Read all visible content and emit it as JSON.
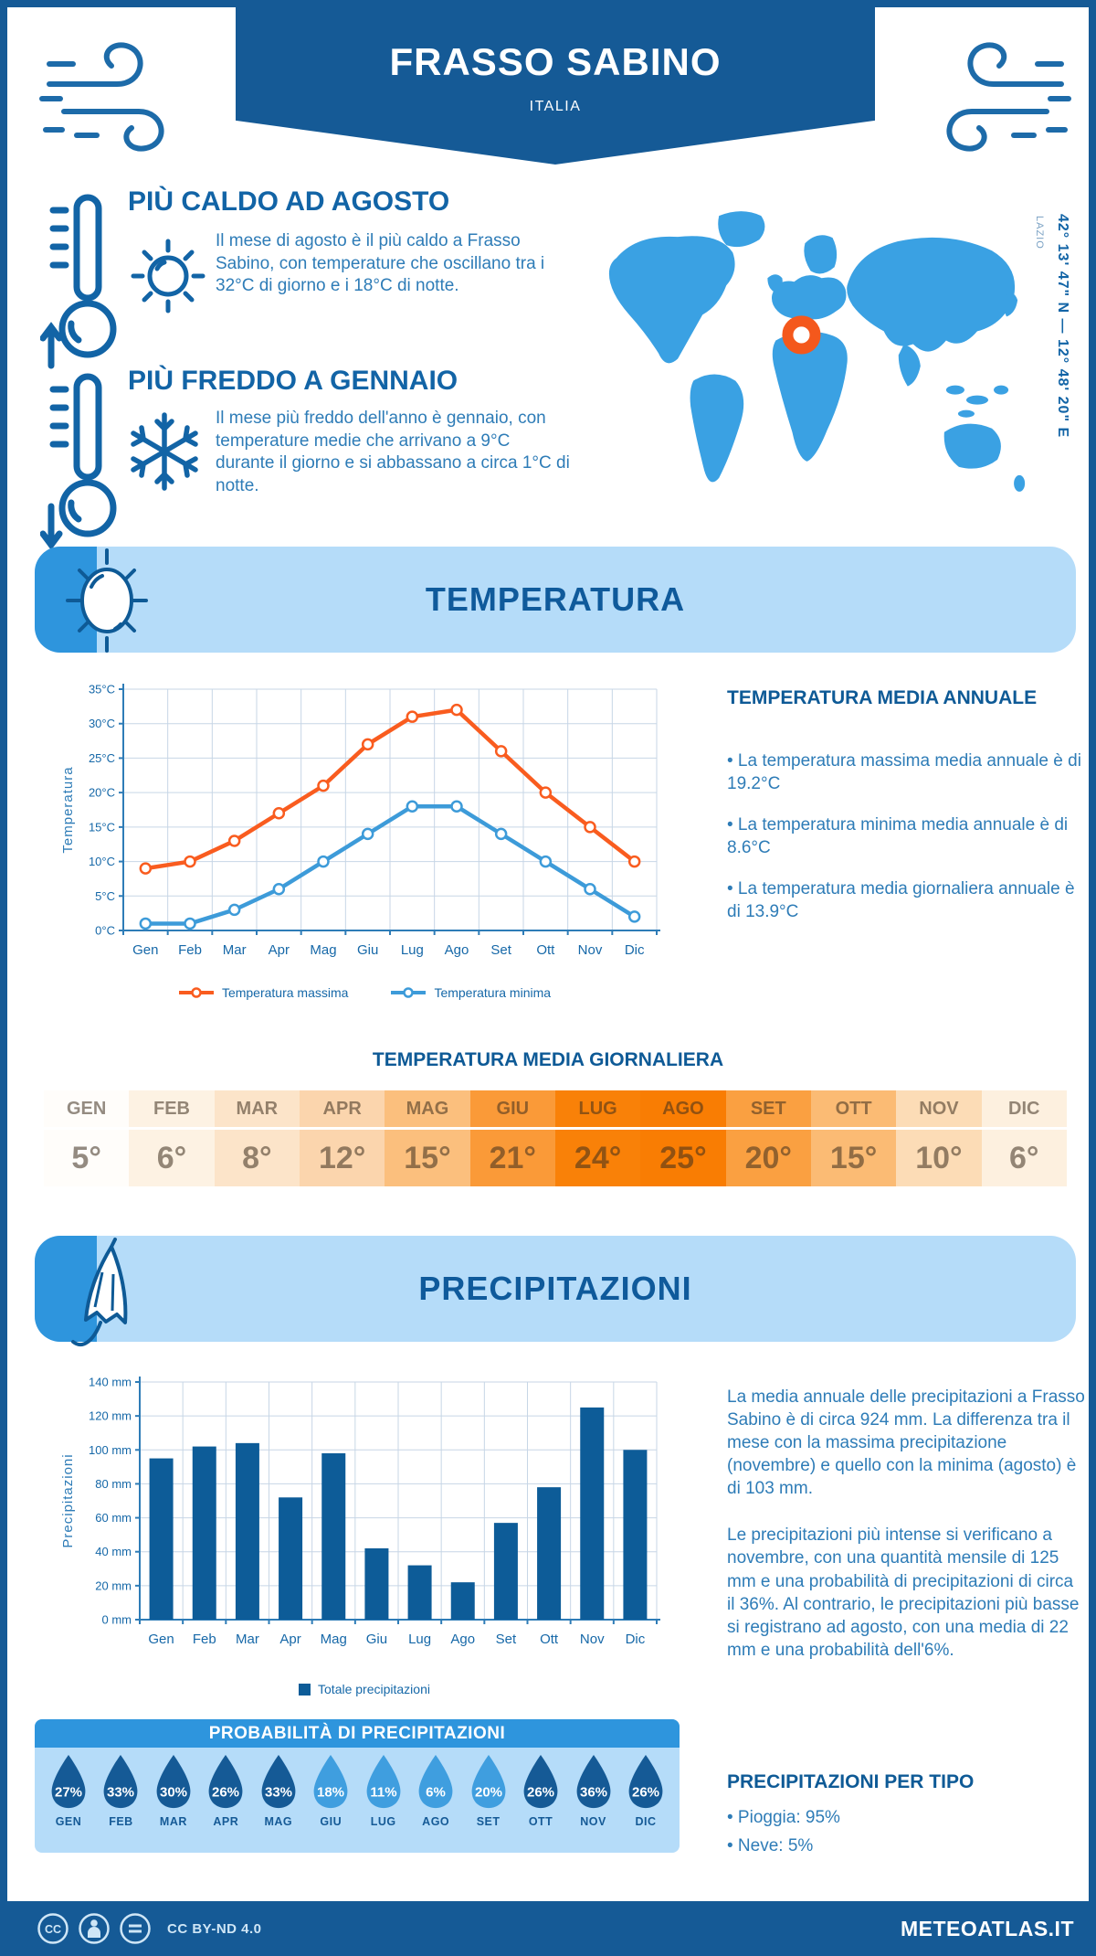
{
  "header": {
    "title": "FRASSO SABINO",
    "subtitle": "ITALIA"
  },
  "highlights": {
    "hot": {
      "title": "PIÙ CALDO AD AGOSTO",
      "text": "Il mese di agosto è il più caldo a Frasso Sabino, con temperature che oscillano tra i 32°C di giorno e i 18°C di notte."
    },
    "cold": {
      "title": "PIÙ FREDDO A GENNAIO",
      "text": "Il mese più freddo dell'anno è gennaio, con temperature medie che arrivano a 9°C durante il giorno e si abbassano a circa 1°C di notte."
    }
  },
  "map": {
    "coordinates": "42° 13' 47\" N — 12° 48' 20\" E",
    "region": "LAZIO"
  },
  "sections": {
    "temperature": {
      "banner": "TEMPERATURA",
      "annual": {
        "heading": "TEMPERATURA MEDIA ANNUALE",
        "bullets": [
          "• La temperatura massima media annuale è di 19.2°C",
          "• La temperatura minima media annuale è di 8.6°C",
          "• La temperatura media giornaliera annuale è di 13.9°C"
        ]
      },
      "daily_heading": "TEMPERATURA MEDIA GIORNALIERA"
    },
    "precipitation": {
      "banner": "PRECIPITAZIONI",
      "paragraphs": [
        "La media annuale delle precipitazioni a Frasso Sabino è di circa 924 mm. La differenza tra il mese con la massima precipitazione (novembre) e quello con la minima (agosto) è di 103 mm.",
        "Le precipitazioni più intense si verificano a novembre, con una quantità mensile di 125 mm e una probabilità di precipitazioni di circa il 36%. Al contrario, le precipitazioni più basse si registrano ad agosto, con una media di 22 mm e una probabilità dell'6%."
      ],
      "probability_heading": "PROBABILITÀ DI PRECIPITAZIONI",
      "per_type": {
        "heading": "PRECIPITAZIONI PER TIPO",
        "bullets": [
          "• Pioggia: 95%",
          "• Neve: 5%"
        ]
      }
    }
  },
  "chart_data": [
    {
      "type": "line",
      "title": "Temperatura media mensile",
      "x": [
        "Gen",
        "Feb",
        "Mar",
        "Apr",
        "Mag",
        "Giu",
        "Lug",
        "Ago",
        "Set",
        "Ott",
        "Nov",
        "Dic"
      ],
      "series": [
        {
          "name": "Temperatura massima",
          "color": "#f95c1f",
          "values": [
            9,
            10,
            13,
            17,
            21,
            27,
            31,
            32,
            26,
            20,
            15,
            10
          ]
        },
        {
          "name": "Temperatura minima",
          "color": "#3d9bd9",
          "values": [
            1,
            1,
            3,
            6,
            10,
            14,
            18,
            18,
            14,
            10,
            6,
            2
          ]
        }
      ],
      "ylabel": "Temperatura",
      "unit": "°C",
      "ylim": [
        0,
        35
      ],
      "ystep": 5,
      "grid": true,
      "legend_position": "bottom"
    },
    {
      "type": "bar",
      "title": "Precipitazioni mensili",
      "categories": [
        "Gen",
        "Feb",
        "Mar",
        "Apr",
        "Mag",
        "Giu",
        "Lug",
        "Ago",
        "Set",
        "Ott",
        "Nov",
        "Dic"
      ],
      "values": [
        95,
        102,
        104,
        72,
        98,
        42,
        32,
        22,
        57,
        78,
        125,
        100
      ],
      "legend": "Totale precipitazioni",
      "ylabel": "Precipitazioni",
      "unit": " mm",
      "ylim": [
        0,
        140
      ],
      "ystep": 20,
      "bar_color": "#0d5c98",
      "grid": true,
      "legend_position": "bottom"
    }
  ],
  "monthly_temperature": {
    "cells": [
      {
        "month": "GEN",
        "value": "5°",
        "bg": "#fffdfa"
      },
      {
        "month": "FEB",
        "value": "6°",
        "bg": "#fdf2e3"
      },
      {
        "month": "MAR",
        "value": "8°",
        "bg": "#fce4c9"
      },
      {
        "month": "APR",
        "value": "12°",
        "bg": "#fbd5ad"
      },
      {
        "month": "MAG",
        "value": "15°",
        "bg": "#fbbf7d"
      },
      {
        "month": "GIU",
        "value": "21°",
        "bg": "#fa9a38"
      },
      {
        "month": "LUG",
        "value": "24°",
        "bg": "#f98108"
      },
      {
        "month": "AGO",
        "value": "25°",
        "bg": "#f97d03"
      },
      {
        "month": "SET",
        "value": "20°",
        "bg": "#faa041"
      },
      {
        "month": "OTT",
        "value": "15°",
        "bg": "#fbbb74"
      },
      {
        "month": "NOV",
        "value": "10°",
        "bg": "#fcdcb6"
      },
      {
        "month": "DIC",
        "value": "6°",
        "bg": "#fdf0df"
      }
    ]
  },
  "precipitation_probability": {
    "items": [
      {
        "month": "GEN",
        "value": "27%",
        "shade": "dark"
      },
      {
        "month": "FEB",
        "value": "33%",
        "shade": "dark"
      },
      {
        "month": "MAR",
        "value": "30%",
        "shade": "dark"
      },
      {
        "month": "APR",
        "value": "26%",
        "shade": "dark"
      },
      {
        "month": "MAG",
        "value": "33%",
        "shade": "dark"
      },
      {
        "month": "GIU",
        "value": "18%",
        "shade": "light"
      },
      {
        "month": "LUG",
        "value": "11%",
        "shade": "light"
      },
      {
        "month": "AGO",
        "value": "6%",
        "shade": "light"
      },
      {
        "month": "SET",
        "value": "20%",
        "shade": "light"
      },
      {
        "month": "OTT",
        "value": "26%",
        "shade": "dark"
      },
      {
        "month": "NOV",
        "value": "36%",
        "shade": "dark"
      },
      {
        "month": "DIC",
        "value": "26%",
        "shade": "dark"
      }
    ]
  },
  "footer": {
    "license": "CC BY-ND 4.0",
    "site": "METEOATLAS.IT"
  },
  "colors": {
    "primary": "#155a96",
    "accent_blue": "#2e95dd",
    "panel_blue": "#b5dcf9",
    "text_blue": "#2e7cb7",
    "heading_blue": "#0e5a96",
    "axis_blue": "#1668a8",
    "grid": "#c7d6e6",
    "orange_line": "#f95c1f",
    "blue_line": "#3d9bd9",
    "bar_blue": "#0d5c98",
    "map_blue": "#3aa1e3",
    "marker_orange": "#f4581c",
    "droplet_dark": "#155a96",
    "droplet_light": "#3f9edf"
  }
}
